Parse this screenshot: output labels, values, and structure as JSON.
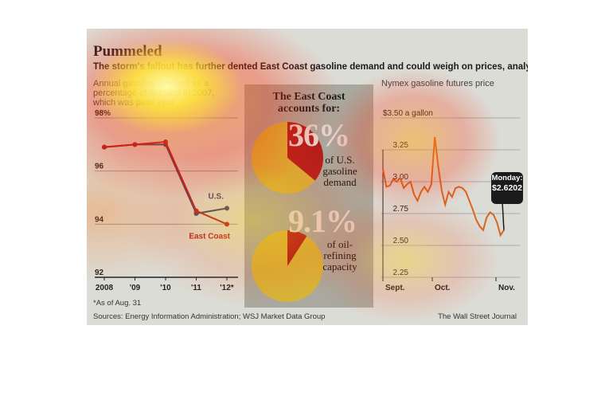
{
  "title": "Pummeled",
  "subtitle": "The storm's fallout has further dented East Coast gasoline demand and could weigh on prices, analysts say.",
  "left_chart_label": [
    "Annual gasoline demand as a",
    "percentage of demand in 2007,",
    "which was peak year"
  ],
  "center_panel": {
    "heading": [
      "The East Coast",
      "accounts for:"
    ],
    "stat1_value": "36%",
    "stat1_desc": [
      "of U.S.",
      "gasoline",
      "demand"
    ],
    "stat2_value": "9.1%",
    "stat2_desc": [
      "of oil-",
      "refining",
      "capacity"
    ]
  },
  "right_chart_label": "Nymex gasoline futures price",
  "callout": [
    "Monday:",
    "$2.6202"
  ],
  "footnote": "*As of Aug. 31",
  "sources": "Sources: Energy Information Administration; WSJ Market Data Group",
  "credit": "The Wall Street Journal",
  "colors": {
    "east_coast": "#b21c1c",
    "us": "#3a3f6b",
    "futures": "#d9661e",
    "pie_main": "#d6b53a",
    "pie_slice": "#b21c1c"
  },
  "chart_data": [
    {
      "type": "line",
      "categories": [
        "2008",
        "'09",
        "'10",
        "'11",
        "'12*"
      ],
      "series": [
        {
          "name": "U.S.",
          "values": [
            96.9,
            97.0,
            97.0,
            94.4,
            94.6
          ]
        },
        {
          "name": "East Coast",
          "values": [
            96.9,
            97.0,
            97.1,
            94.5,
            94.0
          ]
        }
      ],
      "yticks": [
        "98%",
        "96",
        "94",
        "92"
      ],
      "ylim": [
        92,
        98
      ]
    },
    {
      "type": "pie",
      "categories": [
        "East Coast share of U.S. gasoline demand",
        "Rest"
      ],
      "values": [
        36,
        64
      ]
    },
    {
      "type": "pie",
      "categories": [
        "East Coast share of oil-refining capacity",
        "Rest"
      ],
      "values": [
        9.1,
        90.9
      ]
    },
    {
      "type": "line",
      "x_ticks": [
        "Sept.",
        "Oct.",
        "Nov."
      ],
      "yticks": [
        "$3.50 a gallon",
        "3.25",
        "3.00",
        "2.75",
        "2.50",
        "2.25"
      ],
      "ylim": [
        2.25,
        3.5
      ],
      "series": [
        {
          "values": [
            3.1,
            2.96,
            2.97,
            3.02,
            3.0,
            3.03,
            2.95,
            2.98,
            3.0,
            2.9,
            2.85,
            2.92,
            2.96,
            2.92,
            2.98,
            3.35,
            3.12,
            2.93,
            2.82,
            2.92,
            2.88,
            2.95,
            2.96,
            2.95,
            2.92,
            2.85,
            2.78,
            2.7,
            2.65,
            2.62,
            2.72,
            2.76,
            2.74,
            2.68,
            2.58,
            2.62
          ]
        }
      ]
    }
  ]
}
